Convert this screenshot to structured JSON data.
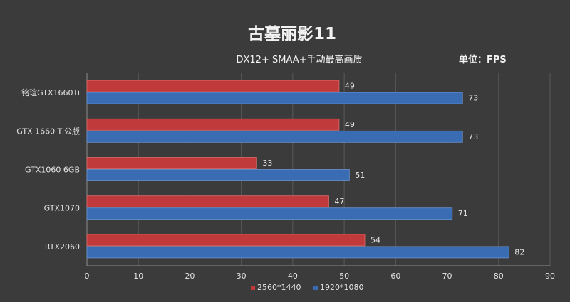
{
  "chart_data": {
    "type": "bar",
    "orientation": "horizontal",
    "title": "古墓丽影11",
    "subtitle": "DX12+ SMAA+手动最高画质",
    "unit_label": "单位：FPS",
    "categories": [
      "铭瑄GTX1660Ti",
      "GTX 1660 Ti公版",
      "GTX1060 6GB",
      "GTX1070",
      "RTX2060"
    ],
    "series": [
      {
        "name": "2560*1440",
        "color": "#c0393b",
        "values": [
          49,
          49,
          33,
          47,
          54
        ]
      },
      {
        "name": "1920*1080",
        "color": "#3a6cb4",
        "values": [
          73,
          73,
          51,
          71,
          82
        ]
      }
    ],
    "xlim": [
      0,
      90
    ],
    "xticks": [
      0,
      10,
      20,
      30,
      40,
      50,
      60,
      70,
      80,
      90
    ],
    "grid": true,
    "legend_position": "bottom"
  }
}
